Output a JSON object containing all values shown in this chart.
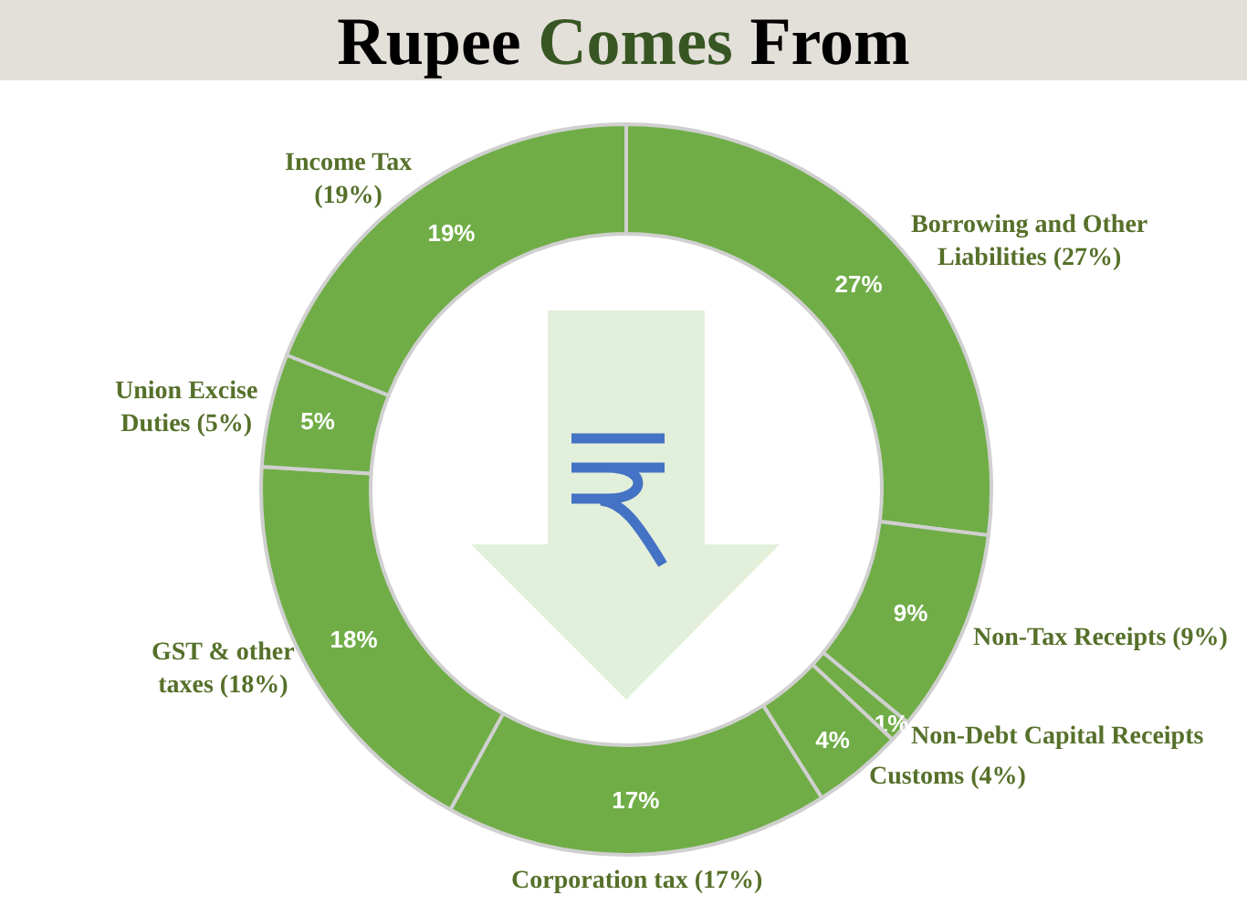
{
  "chart_data": {
    "type": "donut",
    "title": "Rupee Comes From",
    "categories": [
      "Borrowing and Other Liabilities (27%)",
      "Non-Tax Receipts (9%)",
      "Non-Debt Capital Receipts",
      "Customs (4%)",
      "Corporation tax (17%)",
      "GST & other taxes (18%)",
      "Union Excise Duties (5%)",
      "Income Tax (19%)"
    ],
    "values": [
      27,
      9,
      1,
      4,
      17,
      18,
      5,
      19
    ],
    "colors": [
      "#70ad47",
      "#70ad47",
      "#70ad47",
      "#70ad47",
      "#70ad47",
      "#70ad47",
      "#70ad47",
      "#70ad47"
    ],
    "value_labels": [
      "27%",
      "9%",
      "1%",
      "4%",
      "17%",
      "18%",
      "5%",
      "19%"
    ],
    "legend": false
  }
}
